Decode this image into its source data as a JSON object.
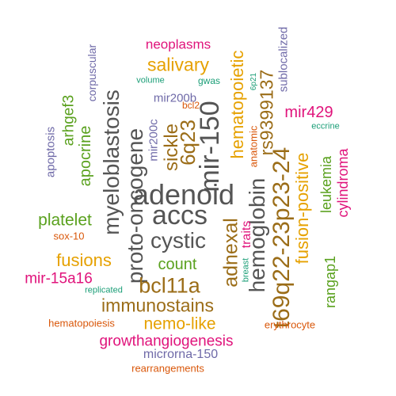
{
  "colors": {
    "background": "#ffffff",
    "gray": "#555555",
    "brown": "#9b6d18",
    "gold": "#e6a100",
    "green": "#5aa11e",
    "magenta": "#e0137b",
    "purple": "#6f6aa8",
    "orange": "#d9570a",
    "teal": "#1b9e77"
  },
  "words": [
    {
      "text": "adenoid"
    },
    {
      "text": "accs"
    },
    {
      "text": "cystic"
    },
    {
      "text": "mir-150"
    },
    {
      "text": "hemoglobin"
    },
    {
      "text": "t69q22-23p23-24"
    },
    {
      "text": "proto-oncogene"
    },
    {
      "text": "myeloblastosis"
    },
    {
      "text": "bcl11a"
    },
    {
      "text": "immunostains"
    },
    {
      "text": "adnexal"
    },
    {
      "text": "6q23"
    },
    {
      "text": "sickle"
    },
    {
      "text": "rs9399137"
    },
    {
      "text": "hematopoietic"
    },
    {
      "text": "fusion-positive"
    },
    {
      "text": "salivary"
    },
    {
      "text": "nemo-like"
    },
    {
      "text": "growthangiogenesis"
    },
    {
      "text": "fusions"
    },
    {
      "text": "apocrine"
    },
    {
      "text": "platelet"
    },
    {
      "text": "count"
    },
    {
      "text": "mir-15a16"
    },
    {
      "text": "leukemia"
    },
    {
      "text": "cylindroma"
    },
    {
      "text": "rangap1"
    },
    {
      "text": "arhgef3"
    },
    {
      "text": "mir429"
    },
    {
      "text": "neoplasms"
    },
    {
      "text": "traits"
    },
    {
      "text": "microrna-150"
    },
    {
      "text": "mir200b"
    },
    {
      "text": "mir200c"
    },
    {
      "text": "apoptosis"
    },
    {
      "text": "corpuscular"
    },
    {
      "text": "sublocalized"
    },
    {
      "text": "anatomic"
    },
    {
      "text": "hematopoiesis"
    },
    {
      "text": "erythrocyte"
    },
    {
      "text": "rearrangements"
    },
    {
      "text": "sox-10"
    },
    {
      "text": "bcl2"
    },
    {
      "text": "volume"
    },
    {
      "text": "gwas"
    },
    {
      "text": "6p21"
    },
    {
      "text": "eccrine"
    },
    {
      "text": "breast"
    },
    {
      "text": "replicated"
    }
  ]
}
